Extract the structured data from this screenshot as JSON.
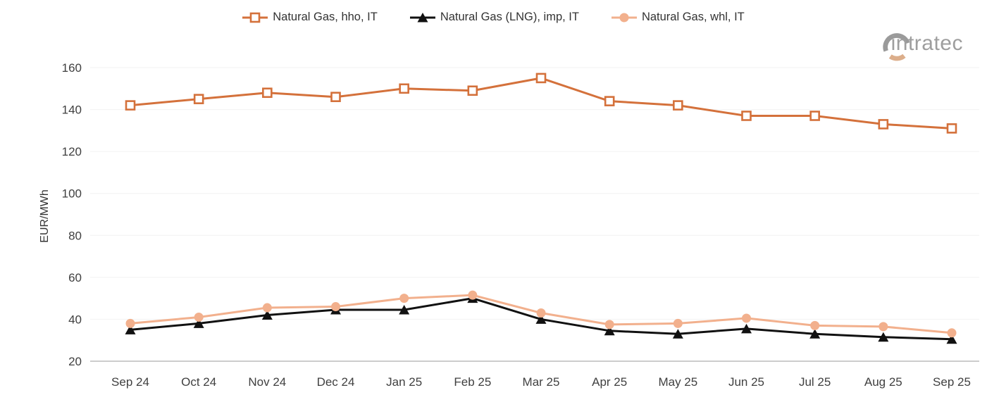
{
  "brand": {
    "logo_text": "intratec"
  },
  "colors": {
    "hho_orange": "#D4713B",
    "lng_black": "#111111",
    "whl_salmon": "#F2B08D",
    "axis_line": "#999999",
    "gridline": "#F2F2F2",
    "tick_text": "#404040",
    "legend_text": "#333333",
    "logo_gray": "#9A9A9A",
    "logo_tan": "#DCAE8B"
  },
  "chart_data": {
    "type": "line",
    "title": "",
    "ylabel": "EUR/MWh",
    "xlabel": "",
    "ylim": [
      20,
      160
    ],
    "yticks": [
      20,
      40,
      60,
      80,
      100,
      120,
      140,
      160
    ],
    "grid": "horizontal",
    "legend_position": "top",
    "categories": [
      "Sep 24",
      "Oct 24",
      "Nov 24",
      "Dec 24",
      "Jan 25",
      "Feb 25",
      "Mar 25",
      "Apr 25",
      "May 25",
      "Jun 25",
      "Jul 25",
      "Aug 25",
      "Sep 25"
    ],
    "series": [
      {
        "id": "hho",
        "name": "Natural Gas, hho, IT",
        "color": "#D4713B",
        "marker": "hollow-square",
        "values": [
          142,
          145,
          148,
          146,
          150,
          149,
          155,
          144,
          142,
          137,
          137,
          133,
          131
        ]
      },
      {
        "id": "lng",
        "name": "Natural Gas (LNG), imp, IT",
        "color": "#111111",
        "marker": "filled-triangle",
        "values": [
          35,
          38,
          42,
          44.5,
          44.5,
          50,
          40,
          34.5,
          33,
          35.5,
          33,
          31.5,
          30.5
        ]
      },
      {
        "id": "whl",
        "name": "Natural Gas, whl, IT",
        "color": "#F2B08D",
        "marker": "filled-circle",
        "values": [
          38,
          41,
          45.5,
          46,
          50,
          51.5,
          43,
          37.5,
          38,
          40.5,
          37,
          36.5,
          33.5
        ]
      }
    ]
  }
}
